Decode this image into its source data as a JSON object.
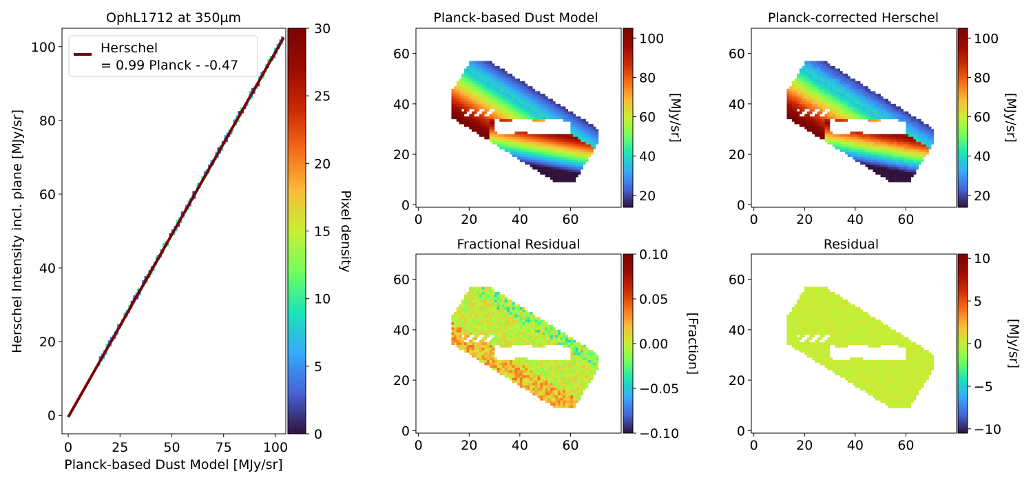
{
  "chart_data": [
    {
      "id": "scatter",
      "type": "heatmap",
      "title": "OphL1712 at 350µm",
      "xlabel": "Planck-based Dust Model [MJy/sr]",
      "ylabel": "Herschel Intensity incl. plane [MJy/sr]",
      "xlim": [
        -3,
        105
      ],
      "ylim": [
        -5,
        105
      ],
      "xticks": [
        "0",
        "25",
        "50",
        "75",
        "100"
      ],
      "yticks": [
        "0",
        "20",
        "40",
        "60",
        "80",
        "100"
      ],
      "fit": {
        "slope": 0.99,
        "intercept": -0.47,
        "x": [
          0,
          104
        ],
        "color": "#7a0403"
      },
      "legend": {
        "line1": "Herschel",
        "line2": "= 0.99 Planck - -0.47",
        "position": "upper-left"
      },
      "colorbar": {
        "label": "Pixel density",
        "ticks": [
          "0",
          "5",
          "10",
          "15",
          "20",
          "25",
          "30"
        ],
        "range": [
          0,
          30
        ],
        "colormap": "turbo"
      }
    },
    {
      "id": "model",
      "type": "heatmap",
      "title": "Planck-based Dust Model",
      "xlim": [
        -1,
        80
      ],
      "ylim": [
        -1,
        70
      ],
      "xticks": [
        "0",
        "20",
        "40",
        "60"
      ],
      "yticks": [
        "0",
        "20",
        "40",
        "60"
      ],
      "colorbar": {
        "label": "[MJy/sr]",
        "ticks": [
          "20",
          "40",
          "60",
          "80",
          "100"
        ],
        "range": [
          14,
          105
        ],
        "colormap": "turbo"
      }
    },
    {
      "id": "corrected",
      "type": "heatmap",
      "title": "Planck-corrected Herschel",
      "xlim": [
        -1,
        80
      ],
      "ylim": [
        -1,
        70
      ],
      "xticks": [
        "0",
        "20",
        "40",
        "60"
      ],
      "yticks": [
        "0",
        "20",
        "40",
        "60"
      ],
      "colorbar": {
        "label": "[MJy/sr]",
        "ticks": [
          "20",
          "40",
          "60",
          "80",
          "100"
        ],
        "range": [
          14,
          105
        ],
        "colormap": "turbo"
      }
    },
    {
      "id": "fracres",
      "type": "heatmap",
      "title": "Fractional Residual",
      "xlim": [
        -1,
        80
      ],
      "ylim": [
        -1,
        70
      ],
      "xticks": [
        "0",
        "20",
        "40",
        "60"
      ],
      "yticks": [
        "0",
        "20",
        "40",
        "60"
      ],
      "colorbar": {
        "label": "[Fraction]",
        "ticks": [
          "0.10",
          "0.05",
          "0.00",
          "−0.05",
          "−0.10"
        ],
        "range": [
          -0.1,
          0.1
        ],
        "colormap": "turbo"
      }
    },
    {
      "id": "residual",
      "type": "heatmap",
      "title": "Residual",
      "xlim": [
        -1,
        80
      ],
      "ylim": [
        -1,
        70
      ],
      "xticks": [
        "0",
        "20",
        "40",
        "60"
      ],
      "yticks": [
        "0",
        "20",
        "40",
        "60"
      ],
      "colorbar": {
        "label": "[MJy/sr]",
        "ticks": [
          "10",
          "5",
          "0",
          "−5",
          "−10"
        ],
        "range": [
          -10.5,
          10.5
        ],
        "colormap": "turbo"
      }
    }
  ]
}
